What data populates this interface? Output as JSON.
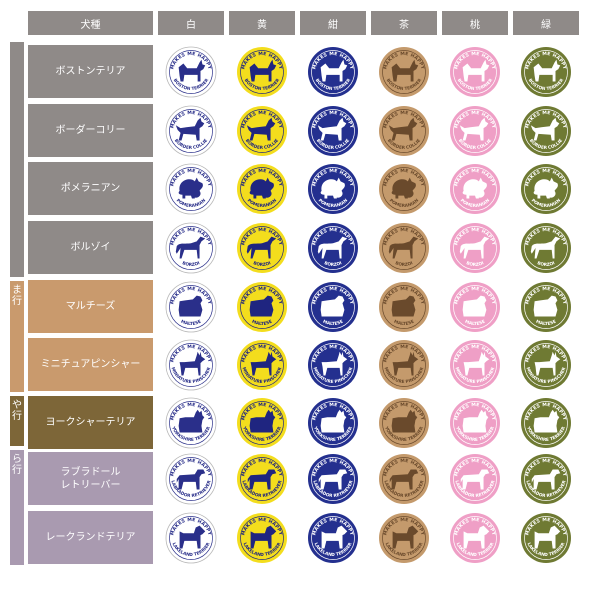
{
  "header": {
    "breed_col": "犬種",
    "colors": [
      {
        "label": "白",
        "fill": "#ffffff",
        "ink": "#2a2f8a",
        "ring": "#2a2f8a"
      },
      {
        "label": "黄",
        "fill": "#f3dd1d",
        "ink": "#1f2580",
        "ring": "#1f2580"
      },
      {
        "label": "紺",
        "fill": "#24308f",
        "ink": "#ffffff",
        "ring": "#ffffff"
      },
      {
        "label": "茶",
        "fill": "#c49a6c",
        "ink": "#6a4a2c",
        "ring": "#6a4a2c"
      },
      {
        "label": "桃",
        "fill": "#ef9fc6",
        "ink": "#ffffff",
        "ring": "#ffffff"
      },
      {
        "label": "緑",
        "fill": "#6f7a33",
        "ink": "#ffffff",
        "ring": "#ffffff"
      }
    ]
  },
  "badge_top_text": "MAKES ME HAPPY",
  "groups": [
    {
      "label": "",
      "color": "#8f8a88"
    },
    {
      "label": "ま\n行",
      "color": "#c99a6d"
    },
    {
      "label": "や\n行",
      "color": "#7d6638"
    },
    {
      "label": "ら\n行",
      "color": "#a99ab0"
    }
  ],
  "rows": [
    {
      "name": "ボストンテリア",
      "en": "BOSTON TERRIER",
      "bg": "#8f8a88",
      "dog": "boston"
    },
    {
      "name": "ボーダーコリー",
      "en": "BORDER COLLIE",
      "bg": "#8f8a88",
      "dog": "collie"
    },
    {
      "name": "ポメラニアン",
      "en": "POMERANIAN",
      "bg": "#8f8a88",
      "dog": "pom"
    },
    {
      "name": "ボルゾイ",
      "en": "BORZOI",
      "bg": "#8f8a88",
      "dog": "borzoi"
    },
    {
      "name": "マルチーズ",
      "en": "MALTESE",
      "bg": "#c99a6d",
      "dog": "maltese"
    },
    {
      "name": "ミニチュアピンシャー",
      "en": "MINIATURE PINSCHER",
      "bg": "#c99a6d",
      "dog": "pinscher"
    },
    {
      "name": "ヨークシャーテリア",
      "en": "YORKSHIRE TERRIER",
      "bg": "#7d6638",
      "dog": "yorkie"
    },
    {
      "name": "ラブラドール\nレトリーバー",
      "en": "LABRADOR RETRIEVER",
      "bg": "#a99ab0",
      "dog": "lab"
    },
    {
      "name": "レークランドテリア",
      "en": "LAKELAND TERRIER",
      "bg": "#a99ab0",
      "dog": "lakeland"
    }
  ]
}
